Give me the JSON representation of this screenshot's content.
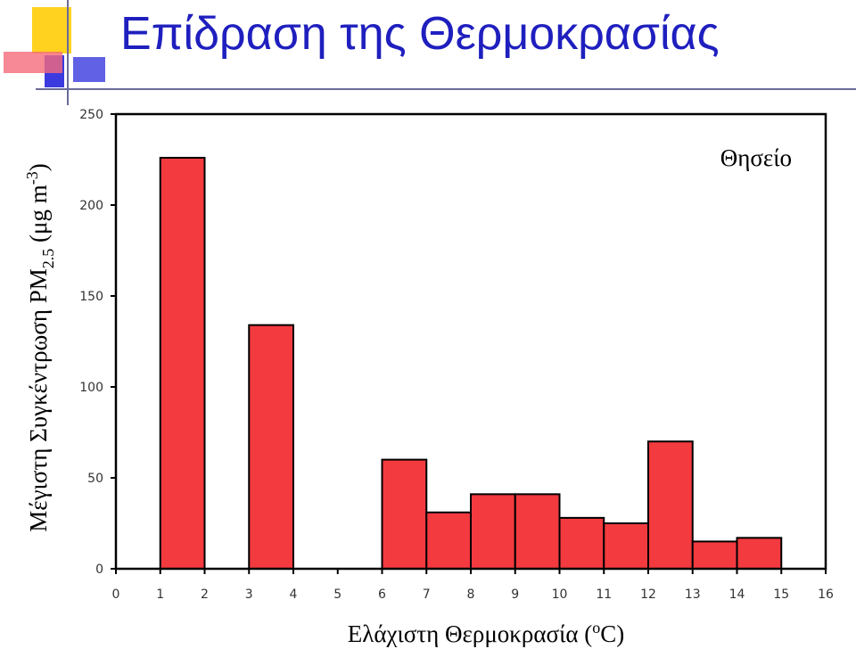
{
  "chart_data": {
    "type": "histogram",
    "title": "Επίδραση της Θερμοκρασίας",
    "annotation": "Θησείο",
    "xlabel": [
      "Ελάχιστη Θερμοκρασία (",
      "o",
      "C)"
    ],
    "ylabel": [
      "Μέγιστη Συγκέντρωση PM",
      "2.5",
      " (μg m",
      "-3",
      ")"
    ],
    "bins": [
      1,
      2,
      3,
      4,
      5,
      6,
      7,
      8,
      9,
      10,
      11,
      12,
      13,
      14,
      15
    ],
    "values": [
      226,
      0,
      134,
      0,
      0,
      60,
      31,
      41,
      41,
      28,
      25,
      70,
      15,
      17
    ],
    "color": "#f23a3f",
    "xlim": [
      0,
      16
    ],
    "xticks": [
      0,
      1,
      2,
      3,
      4,
      5,
      6,
      7,
      8,
      9,
      10,
      11,
      12,
      13,
      14,
      15,
      16
    ],
    "ylim": [
      0,
      250
    ],
    "yticks": [
      0,
      50,
      100,
      150,
      200,
      250
    ]
  }
}
